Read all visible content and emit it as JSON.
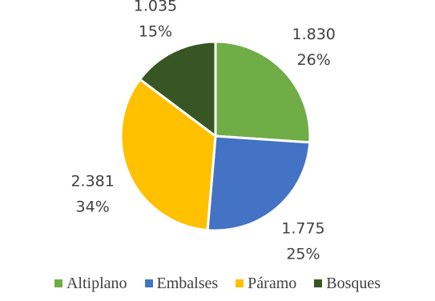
{
  "chart_data": {
    "type": "pie",
    "title": "",
    "slices": [
      {
        "name": "Altiplano",
        "value": 1830,
        "value_label": "1.830",
        "percent_label": "26%",
        "color": "#70ad47"
      },
      {
        "name": "Embalses",
        "value": 1775,
        "value_label": "1.775",
        "percent_label": "25%",
        "color": "#4472c4"
      },
      {
        "name": "Páramo",
        "value": 2381,
        "value_label": "2.381",
        "percent_label": "34%",
        "color": "#ffc000"
      },
      {
        "name": "Bosques",
        "value": 1035,
        "value_label": "1.035",
        "percent_label": "15%",
        "color": "#375623"
      }
    ],
    "legend_position": "bottom"
  }
}
